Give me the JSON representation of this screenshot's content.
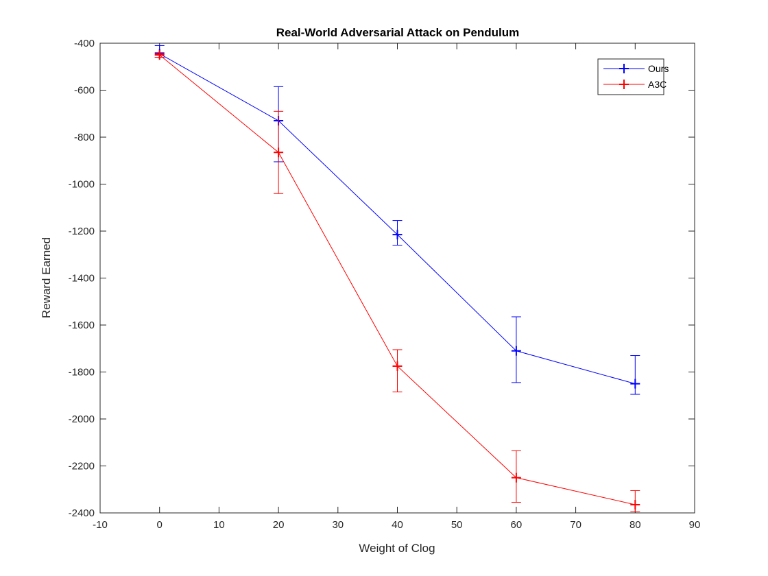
{
  "chart_data": {
    "type": "line",
    "title": "Real-World Adversarial Attack on Pendulum",
    "xlabel": "Weight of Clog",
    "ylabel": "Reward Earned",
    "xlim": [
      -10,
      90
    ],
    "ylim": [
      -2400,
      -400
    ],
    "xticks": [
      -10,
      0,
      10,
      20,
      30,
      40,
      50,
      60,
      70,
      80,
      90
    ],
    "yticks": [
      -400,
      -600,
      -800,
      -1000,
      -1200,
      -1400,
      -1600,
      -1800,
      -2000,
      -2200,
      -2400
    ],
    "x": [
      0,
      20,
      40,
      60,
      80
    ],
    "series": [
      {
        "name": "Ours",
        "color": "#0000ff",
        "values": [
          -445,
          -730,
          -1215,
          -1710,
          -1850
        ],
        "err_low": [
          -460,
          -905,
          -1260,
          -1845,
          -1895
        ],
        "err_high": [
          -410,
          -585,
          -1155,
          -1565,
          -1730
        ]
      },
      {
        "name": "A3C",
        "color": "#ff0000",
        "values": [
          -450,
          -865,
          -1775,
          -2250,
          -2365
        ],
        "err_low": [
          -460,
          -1040,
          -1885,
          -2355,
          -2395
        ],
        "err_high": [
          -440,
          -690,
          -1705,
          -2135,
          -2305
        ]
      }
    ],
    "grid": false,
    "legend_position": "top-right"
  }
}
